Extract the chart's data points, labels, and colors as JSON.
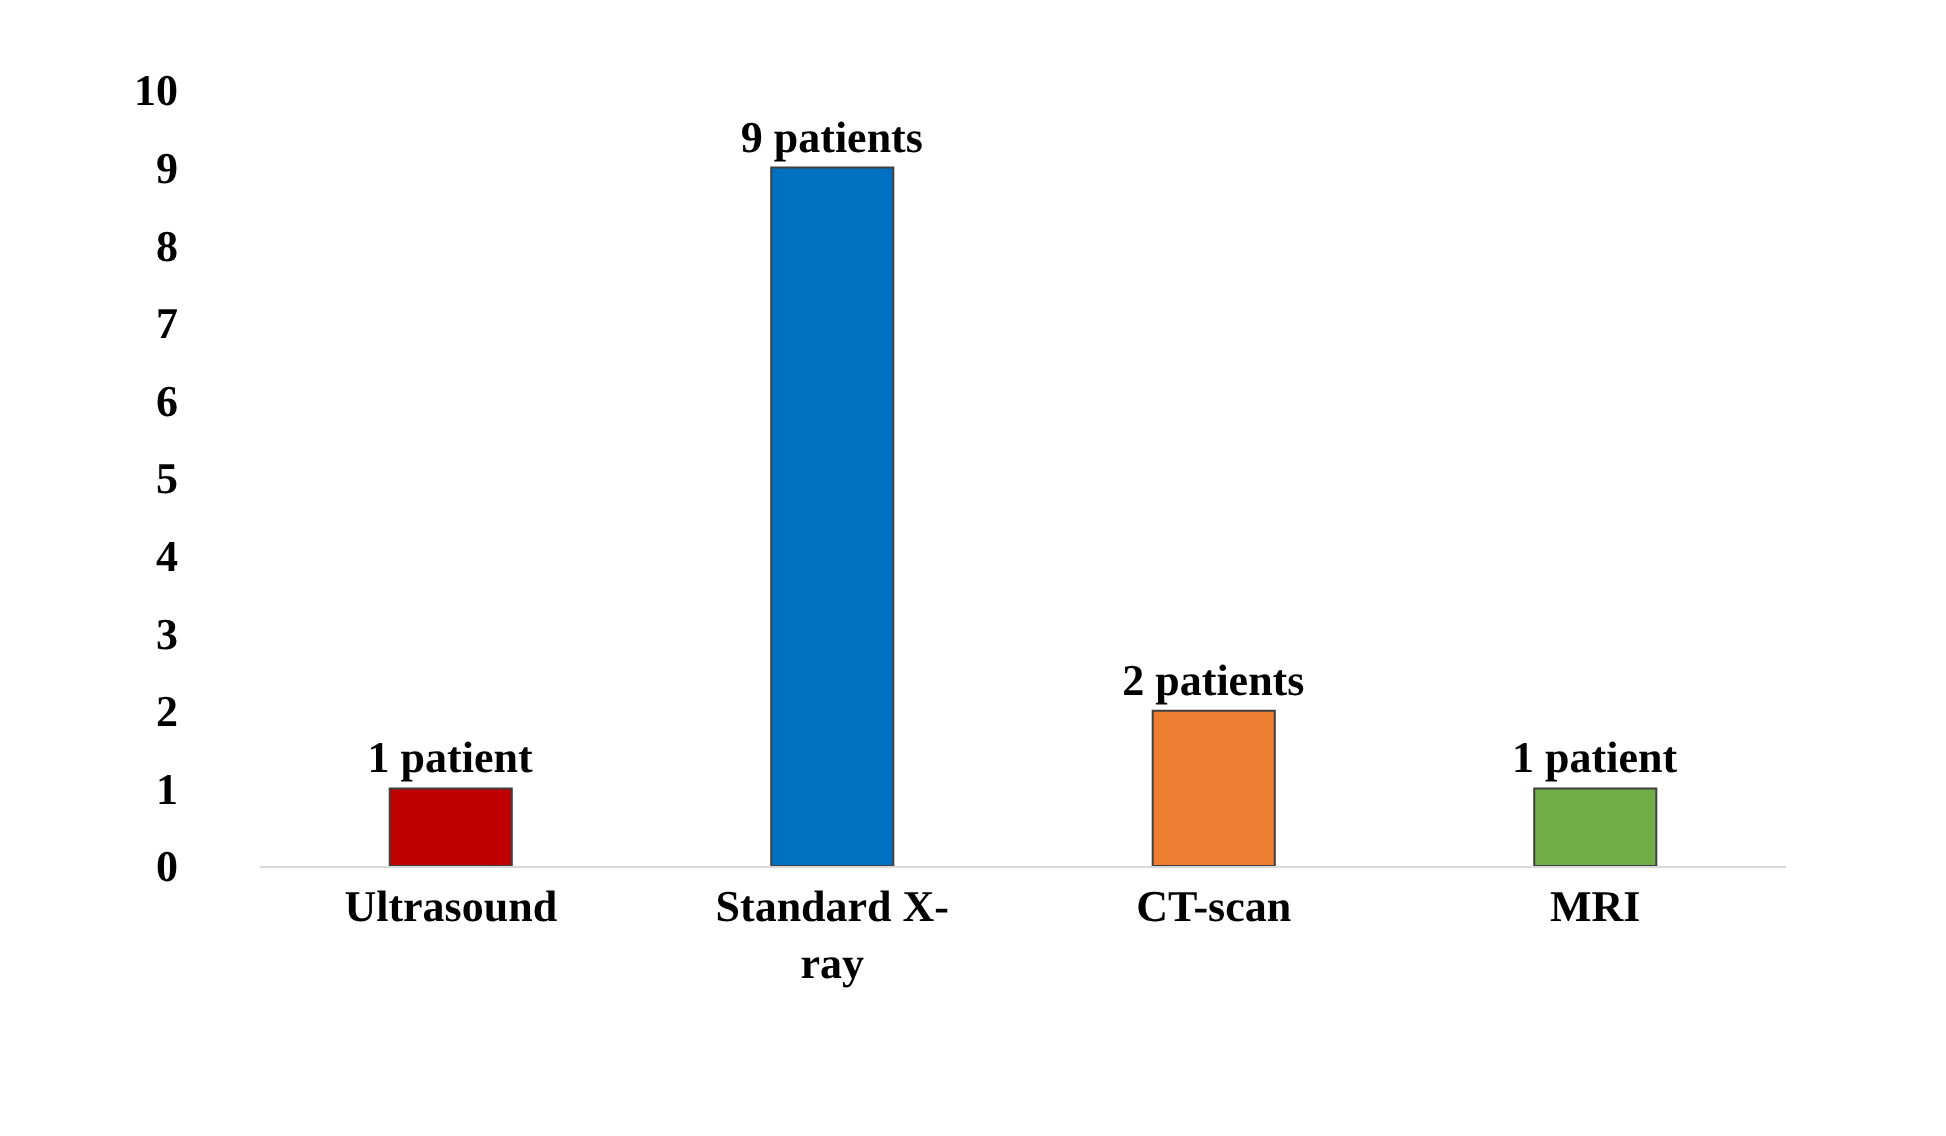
{
  "chart_data": {
    "type": "bar",
    "categories": [
      "Ultrasound",
      "Standard X-ray",
      "CT-scan",
      "MRI"
    ],
    "values": [
      1,
      9,
      2,
      1
    ],
    "colors": [
      "#c00000",
      "#0070c0",
      "#ed7d31",
      "#70ad47"
    ],
    "value_labels": [
      "1 patient",
      "9 patients",
      "2 patients",
      "1 patient"
    ],
    "ylim": [
      0,
      10
    ],
    "yticks": [
      0,
      1,
      2,
      3,
      4,
      5,
      6,
      7,
      8,
      9,
      10
    ],
    "legend": false
  }
}
